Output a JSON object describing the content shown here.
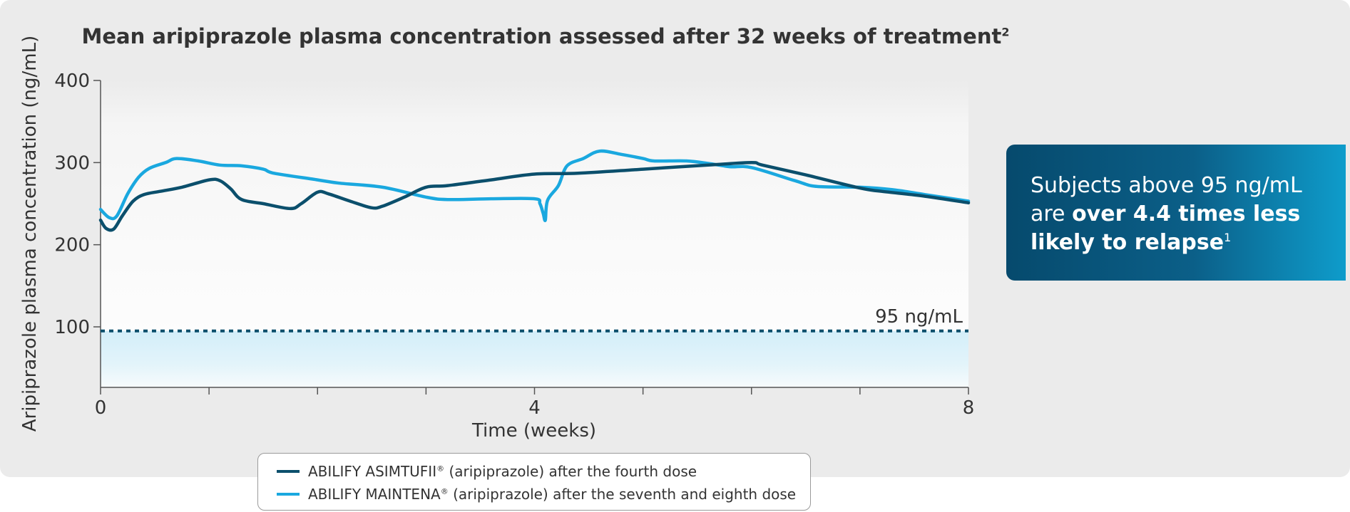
{
  "chart_data": {
    "type": "line",
    "title": "Mean aripiprazole plasma concentration assessed after 32 weeks of treatment",
    "title_superscript": "2",
    "xlabel": "Time (weeks)",
    "ylabel": "Aripiprazole plasma concentration (ng/mL)",
    "xlim": [
      0,
      8
    ],
    "ylim": [
      25,
      400
    ],
    "x_ticks": [
      0,
      1,
      2,
      3,
      4,
      5,
      6,
      7,
      8
    ],
    "x_tick_labels": [
      "0",
      "",
      "",
      "",
      "4",
      "",
      "",
      "",
      "8"
    ],
    "y_ticks": [
      100,
      200,
      300,
      400
    ],
    "y_tick_labels": [
      "100",
      "200",
      "300",
      "400"
    ],
    "threshold": {
      "value": 95,
      "label": "95 ng/mL"
    },
    "series": [
      {
        "name": "ABILIFY ASIMTUFII",
        "color": "#0b4f6c",
        "points": [
          [
            0,
            230
          ],
          [
            0.05,
            220
          ],
          [
            0.12,
            219
          ],
          [
            0.2,
            235
          ],
          [
            0.3,
            253
          ],
          [
            0.4,
            261
          ],
          [
            0.55,
            265
          ],
          [
            0.75,
            270
          ],
          [
            1.0,
            279
          ],
          [
            1.1,
            278
          ],
          [
            1.2,
            268
          ],
          [
            1.3,
            255
          ],
          [
            1.5,
            250
          ],
          [
            1.75,
            244
          ],
          [
            1.85,
            250
          ],
          [
            2.0,
            264
          ],
          [
            2.1,
            262
          ],
          [
            2.3,
            253
          ],
          [
            2.5,
            245
          ],
          [
            2.6,
            247
          ],
          [
            2.8,
            258
          ],
          [
            3.0,
            270
          ],
          [
            3.2,
            272
          ],
          [
            3.6,
            279
          ],
          [
            4.0,
            286
          ],
          [
            4.4,
            287
          ],
          [
            5.0,
            292
          ],
          [
            5.6,
            297
          ],
          [
            6.0,
            300
          ],
          [
            6.1,
            297
          ],
          [
            6.5,
            285
          ],
          [
            7.0,
            269
          ],
          [
            7.2,
            265
          ],
          [
            7.6,
            259
          ],
          [
            8.0,
            251
          ]
        ]
      },
      {
        "name": "ABILIFY MAINTENA",
        "color": "#1aa8df",
        "points": [
          [
            0,
            243
          ],
          [
            0.08,
            233
          ],
          [
            0.15,
            235
          ],
          [
            0.25,
            262
          ],
          [
            0.35,
            282
          ],
          [
            0.45,
            293
          ],
          [
            0.6,
            300
          ],
          [
            0.7,
            305
          ],
          [
            0.9,
            302
          ],
          [
            1.1,
            297
          ],
          [
            1.3,
            296
          ],
          [
            1.5,
            292
          ],
          [
            1.6,
            287
          ],
          [
            2.0,
            279
          ],
          [
            2.2,
            275
          ],
          [
            2.6,
            270
          ],
          [
            3.0,
            258
          ],
          [
            3.2,
            255
          ],
          [
            3.6,
            256
          ],
          [
            4.0,
            256
          ],
          [
            4.05,
            250
          ],
          [
            4.08,
            238
          ],
          [
            4.1,
            230
          ],
          [
            4.12,
            254
          ],
          [
            4.22,
            272
          ],
          [
            4.3,
            296
          ],
          [
            4.45,
            305
          ],
          [
            4.6,
            314
          ],
          [
            4.8,
            310
          ],
          [
            5.0,
            305
          ],
          [
            5.1,
            302
          ],
          [
            5.4,
            302
          ],
          [
            5.6,
            299
          ],
          [
            5.8,
            295
          ],
          [
            6.0,
            294
          ],
          [
            6.4,
            278
          ],
          [
            6.6,
            271
          ],
          [
            7.0,
            270
          ],
          [
            7.3,
            267
          ],
          [
            7.6,
            261
          ],
          [
            8.0,
            253
          ]
        ]
      }
    ]
  },
  "callout": {
    "line1": "Subjects above 95 ng/mL",
    "line2_plain": "are ",
    "line2_bold": "over 4.4 times less",
    "line3_bold": "likely to relapse",
    "superscript": "1"
  },
  "legend": [
    {
      "prefix": "ABILIFY ASIMTUFII",
      "mark": "®",
      "suffix": " (aripiprazole) after the fourth dose",
      "color": "#0b4f6c"
    },
    {
      "prefix": "ABILIFY MAINTENA",
      "mark": "®",
      "suffix": " (aripiprazole) after the seventh and eighth dose",
      "color": "#1aa8df"
    }
  ],
  "colors": {
    "panel_bg": "#ebebeb",
    "dark_teal": "#0b4f6c",
    "light_blue": "#1aa8df",
    "band": "#d5eef8"
  }
}
